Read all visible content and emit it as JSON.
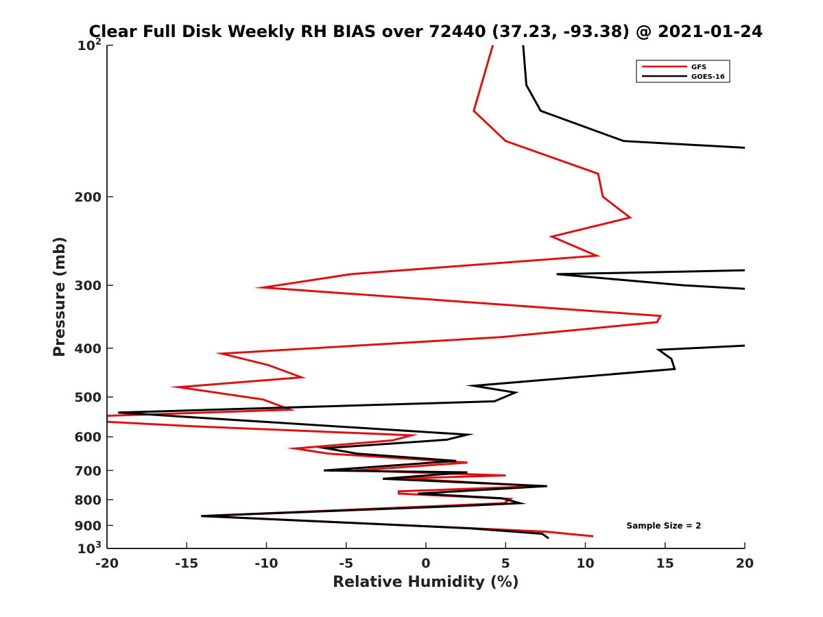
{
  "chart_data": {
    "type": "line",
    "title": "Clear Full Disk Weekly RH BIAS over 72440 (37.23, -93.38) @ 2021-01-24",
    "xlabel": "Relative Humidity (%)",
    "ylabel": "Pressure (mb)",
    "xlim": [
      -20,
      20
    ],
    "ylim": [
      100,
      1000
    ],
    "y_scale": "log",
    "y_reversed": true,
    "x_ticks": [
      -20,
      -15,
      -10,
      -5,
      0,
      5,
      10,
      15,
      20
    ],
    "y_ticks": [
      {
        "value": 100,
        "base": "10",
        "exp": "2"
      },
      {
        "value": 200,
        "label": "200"
      },
      {
        "value": 300,
        "label": "300"
      },
      {
        "value": 400,
        "label": "400"
      },
      {
        "value": 500,
        "label": "500"
      },
      {
        "value": 600,
        "label": "600"
      },
      {
        "value": 700,
        "label": "700"
      },
      {
        "value": 800,
        "label": "800"
      },
      {
        "value": 900,
        "label": "900"
      },
      {
        "value": 1000,
        "base": "10",
        "exp": "3"
      }
    ],
    "grid": false,
    "legend_position": "top-right",
    "annotation": "Sample Size = 2",
    "series": [
      {
        "name": "GFS",
        "color": "#e01010",
        "points": [
          [
            4.2,
            100
          ],
          [
            3.0,
            135
          ],
          [
            5.0,
            155
          ],
          [
            10.8,
            180
          ],
          [
            11.1,
            200
          ],
          [
            12.8,
            220
          ],
          [
            7.9,
            240
          ],
          [
            10.7,
            262
          ],
          [
            -4.7,
            285
          ],
          [
            -10.2,
            303
          ],
          [
            14.7,
            345
          ],
          [
            14.5,
            355
          ],
          [
            4.8,
            380
          ],
          [
            -12.8,
            410
          ],
          [
            -9.9,
            432
          ],
          [
            -7.8,
            457
          ],
          [
            -15.5,
            478
          ],
          [
            -10.2,
            506
          ],
          [
            -8.5,
            530
          ],
          [
            -20,
            545
          ],
          [
            -20,
            560
          ],
          [
            -14.5,
            572
          ],
          [
            -0.9,
            596
          ],
          [
            -2.1,
            610
          ],
          [
            -8.2,
            633
          ],
          [
            -6.1,
            648
          ],
          [
            2.6,
            675
          ],
          [
            -4.4,
            700
          ],
          [
            5.0,
            716
          ],
          [
            -1.5,
            726
          ],
          [
            7.2,
            752
          ],
          [
            -1.7,
            770
          ],
          [
            -1.7,
            778
          ],
          [
            5.3,
            797
          ],
          [
            4.9,
            813
          ],
          [
            -14.0,
            862
          ],
          [
            7.5,
            926
          ],
          [
            10.5,
            946
          ]
        ]
      },
      {
        "name": "GOES-16",
        "color": "#000000",
        "points": [
          [
            6.1,
            100
          ],
          [
            6.3,
            120
          ],
          [
            7.2,
            135
          ],
          [
            12.4,
            155
          ],
          [
            20.2,
            160
          ],
          [
            20.2,
            280
          ],
          [
            8.2,
            285
          ],
          [
            16.2,
            300
          ],
          [
            20.2,
            305
          ],
          [
            20.2,
            395
          ],
          [
            14.6,
            403
          ],
          [
            15.4,
            420
          ],
          [
            15.6,
            440
          ],
          [
            3.0,
            475
          ],
          [
            5.6,
            490
          ],
          [
            4.3,
            510
          ],
          [
            -19.3,
            537
          ],
          [
            2.6,
            594
          ],
          [
            1.3,
            608
          ],
          [
            -6.3,
            632
          ],
          [
            -4.3,
            648
          ],
          [
            1.9,
            670
          ],
          [
            -6.4,
            700
          ],
          [
            2.6,
            706
          ],
          [
            -2.7,
            727
          ],
          [
            7.6,
            752
          ],
          [
            -0.5,
            778
          ],
          [
            4.8,
            795
          ],
          [
            5.9,
            813
          ],
          [
            2.4,
            823
          ],
          [
            -14.1,
            862
          ],
          [
            2.7,
            912
          ],
          [
            7.3,
            935
          ],
          [
            7.7,
            955
          ]
        ]
      }
    ]
  }
}
